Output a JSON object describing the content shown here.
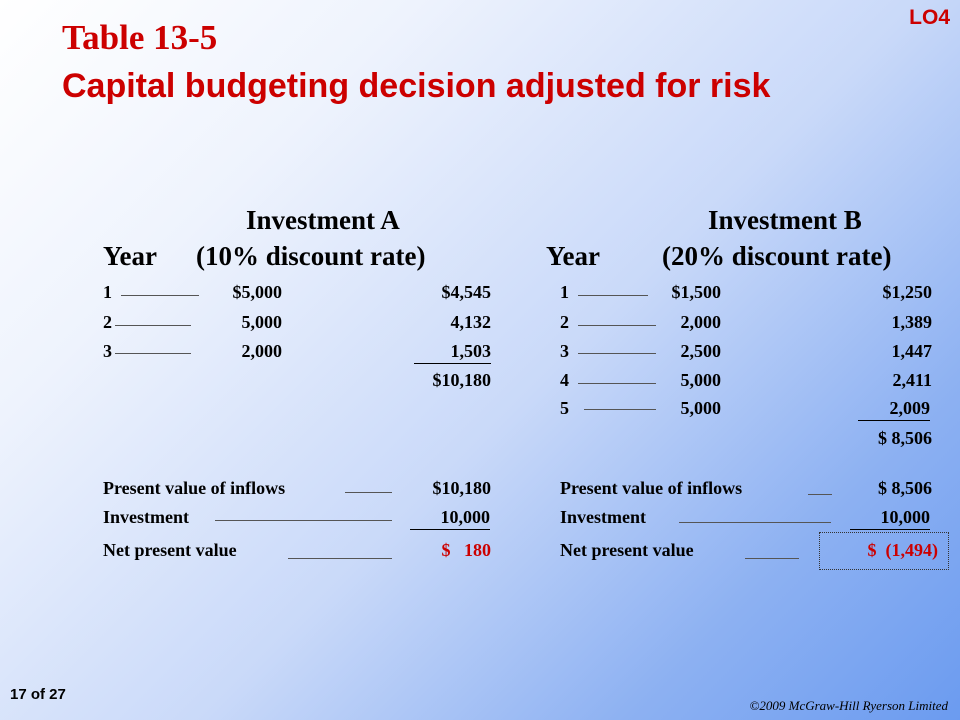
{
  "lo_tag": "LO4",
  "title_line1": "Table 13-5",
  "title_line2": "Capital budgeting decision adjusted for risk",
  "investment_a": {
    "name": "Investment A",
    "year_label": "Year",
    "rate_label": "(10% discount rate)",
    "rows": [
      {
        "year": "1",
        "cash": "$5,000",
        "pv": "$4,545"
      },
      {
        "year": "2",
        "cash": "5,000",
        "pv": "4,132"
      },
      {
        "year": "3",
        "cash": "2,000",
        "pv": "1,503"
      }
    ],
    "total_pv": "$10,180",
    "summary": {
      "pv_inflows_label": "Present value of inflows",
      "pv_inflows_value": "$10,180",
      "investment_label": "Investment",
      "investment_value": "10,000",
      "npv_label": "Net present value",
      "npv_value": "$   180"
    }
  },
  "investment_b": {
    "name": "Investment B",
    "year_label": "Year",
    "rate_label": "(20% discount rate)",
    "rows": [
      {
        "year": "1",
        "cash": "$1,500",
        "pv": "$1,250"
      },
      {
        "year": "2",
        "cash": "2,000",
        "pv": "1,389"
      },
      {
        "year": "3",
        "cash": "2,500",
        "pv": "1,447"
      },
      {
        "year": "4",
        "cash": "5,000",
        "pv": "2,411"
      },
      {
        "year": "5",
        "cash": "5,000",
        "pv": "2,009"
      }
    ],
    "total_pv": "$ 8,506",
    "summary": {
      "pv_inflows_label": "Present value of inflows",
      "pv_inflows_value": "$ 8,506",
      "investment_label": "Investment",
      "investment_value": "10,000",
      "npv_label": "Net present value",
      "npv_value": "$  (1,494)"
    }
  },
  "slide_number": "17 of 27",
  "copyright": "©2009 McGraw-Hill Ryerson Limited"
}
